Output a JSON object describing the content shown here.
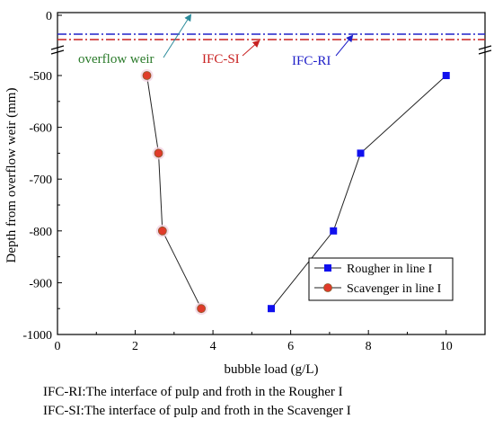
{
  "chart_data": {
    "type": "line",
    "xlabel": "bubble load (g/L)",
    "ylabel": "Depth from overflow weir (mm)",
    "xlim": [
      0,
      11
    ],
    "ylim": [
      -1000,
      0
    ],
    "x_ticks": [
      0,
      2,
      4,
      6,
      8,
      10
    ],
    "x_tick_labels": [
      "0",
      "2",
      "4",
      "6",
      "8",
      "10"
    ],
    "y_ticks": [
      0,
      -500,
      -600,
      -700,
      -800,
      -900,
      -1000
    ],
    "y_tick_labels": [
      "0",
      "-500",
      "-600",
      "-700",
      "-800",
      "-900",
      "-1000"
    ],
    "axis_break": "y between 0 and -500",
    "series": [
      {
        "name": "Rougher in line I",
        "marker": "square",
        "color": "#1010ee",
        "x": [
          10.0,
          7.8,
          7.1,
          5.5
        ],
        "y": [
          -500,
          -650,
          -800,
          -950
        ]
      },
      {
        "name": "Scavenger in line I",
        "marker": "circle",
        "color": "#e03a2a",
        "x": [
          2.3,
          2.6,
          2.7,
          3.7
        ],
        "y": [
          -500,
          -650,
          -800,
          -950
        ]
      }
    ],
    "reference_lines": [
      {
        "label": "IFC-RI",
        "color": "#2020c8"
      },
      {
        "label": "IFC-SI",
        "color": "#c82020"
      }
    ],
    "annotations": [
      {
        "text": "overflow weir",
        "color": "#2a7a2a"
      },
      {
        "text": "IFC-SI",
        "color": "#c82020"
      },
      {
        "text": "IFC-RI",
        "color": "#2020c8"
      }
    ],
    "legend_position": "lower-right",
    "grid": false
  },
  "notes": [
    "IFC-RI:The interface of pulp and froth in the Rougher I",
    "IFC-SI:The interface of pulp and froth in the Scavenger I"
  ]
}
